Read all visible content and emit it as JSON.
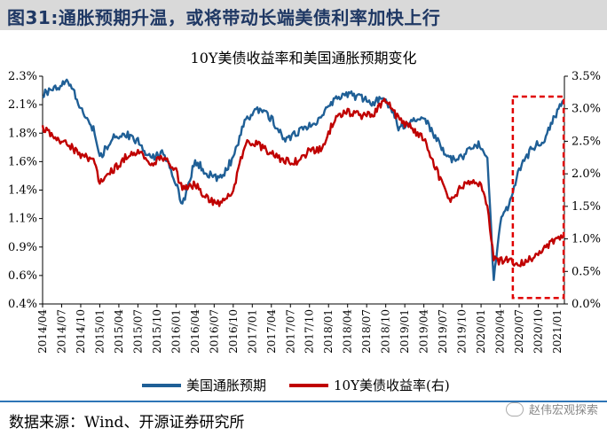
{
  "figure": {
    "label": "图31:",
    "title": "通胀预期升温，或将带动长端美债利率加快上行"
  },
  "source": {
    "text": "数据来源：Wind、开源证券研究所",
    "watermark": "赵伟宏观探索"
  },
  "colors": {
    "blue": "#1f5f96",
    "red": "#c00000",
    "highlight": "#e00000",
    "title_blue": "#1f3864"
  },
  "chart_data": {
    "type": "line",
    "title": "10Y美债收益率和美国通胀预期变化",
    "x_ticks": [
      "2014/04",
      "2014/07",
      "2014/10",
      "2015/01",
      "2015/04",
      "2015/07",
      "2015/10",
      "2016/01",
      "2016/04",
      "2016/07",
      "2016/10",
      "2017/01",
      "2017/04",
      "2017/07",
      "2017/10",
      "2018/01",
      "2018/04",
      "2018/07",
      "2018/10",
      "2019/01",
      "2019/04",
      "2019/07",
      "2019/10",
      "2020/01",
      "2020/04",
      "2020/07",
      "2020/10",
      "2021/01"
    ],
    "left_axis": {
      "ticks": [
        "0.4%",
        "0.6%",
        "0.9%",
        "1.1%",
        "1.4%",
        "1.6%",
        "1.8%",
        "2.1%",
        "2.3%"
      ],
      "min": 0.4,
      "max": 2.3
    },
    "right_axis": {
      "ticks": [
        "0.0%",
        "0.5%",
        "1.0%",
        "1.5%",
        "2.0%",
        "2.5%",
        "3.0%",
        "3.5%"
      ],
      "min": 0.0,
      "max": 3.5
    },
    "series": [
      {
        "name": "美国通胀预期",
        "axis": "left",
        "color": "#1f5f96",
        "x": [
          "2014/04",
          "2014/06",
          "2014/08",
          "2014/10",
          "2014/12",
          "2015/01",
          "2015/03",
          "2015/05",
          "2015/07",
          "2015/09",
          "2015/11",
          "2016/01",
          "2016/02",
          "2016/04",
          "2016/06",
          "2016/08",
          "2016/10",
          "2016/12",
          "2017/02",
          "2017/04",
          "2017/06",
          "2017/08",
          "2017/10",
          "2017/12",
          "2018/02",
          "2018/04",
          "2018/06",
          "2018/08",
          "2018/10",
          "2018/12",
          "2019/02",
          "2019/04",
          "2019/06",
          "2019/08",
          "2019/10",
          "2019/12",
          "2020/01",
          "2020/02",
          "2020/03",
          "2020/04",
          "2020/05",
          "2020/07",
          "2020/09",
          "2020/11",
          "2021/01",
          "2021/02"
        ],
        "y": [
          2.15,
          2.2,
          2.25,
          2.05,
          1.85,
          1.62,
          1.78,
          1.82,
          1.76,
          1.62,
          1.66,
          1.42,
          1.22,
          1.6,
          1.48,
          1.45,
          1.62,
          1.95,
          2.02,
          1.95,
          1.78,
          1.82,
          1.88,
          1.96,
          2.12,
          2.15,
          2.12,
          2.08,
          2.12,
          1.88,
          1.92,
          1.95,
          1.78,
          1.6,
          1.62,
          1.74,
          1.72,
          1.6,
          0.6,
          1.08,
          1.18,
          1.52,
          1.7,
          1.78,
          2.0,
          2.1
        ]
      },
      {
        "name": "10Y美债收益率(右)",
        "axis": "right",
        "color": "#c00000",
        "x": [
          "2014/04",
          "2014/06",
          "2014/08",
          "2014/10",
          "2014/12",
          "2015/01",
          "2015/03",
          "2015/05",
          "2015/07",
          "2015/09",
          "2015/11",
          "2016/01",
          "2016/02",
          "2016/04",
          "2016/06",
          "2016/08",
          "2016/10",
          "2016/12",
          "2017/02",
          "2017/04",
          "2017/06",
          "2017/08",
          "2017/10",
          "2017/12",
          "2018/02",
          "2018/04",
          "2018/06",
          "2018/08",
          "2018/10",
          "2018/12",
          "2019/02",
          "2019/04",
          "2019/06",
          "2019/08",
          "2019/10",
          "2019/12",
          "2020/01",
          "2020/02",
          "2020/03",
          "2020/04",
          "2020/05",
          "2020/07",
          "2020/09",
          "2020/11",
          "2021/01",
          "2021/02"
        ],
        "y": [
          2.7,
          2.55,
          2.45,
          2.3,
          2.2,
          1.85,
          2.05,
          2.25,
          2.35,
          2.15,
          2.25,
          2.05,
          1.75,
          1.85,
          1.6,
          1.55,
          1.75,
          2.5,
          2.45,
          2.3,
          2.2,
          2.2,
          2.35,
          2.4,
          2.85,
          2.95,
          2.9,
          2.9,
          3.15,
          2.85,
          2.7,
          2.55,
          2.05,
          1.6,
          1.8,
          1.9,
          1.8,
          1.5,
          0.7,
          0.65,
          0.7,
          0.6,
          0.7,
          0.85,
          1.0,
          1.05
        ]
      }
    ],
    "highlight_box": {
      "x_start": "2020/06",
      "x_end": "2021/02",
      "y_start": 0.45,
      "y_end": 2.13,
      "style": "dashed",
      "color": "#e00000"
    },
    "legend_position": "bottom",
    "grid": false
  }
}
